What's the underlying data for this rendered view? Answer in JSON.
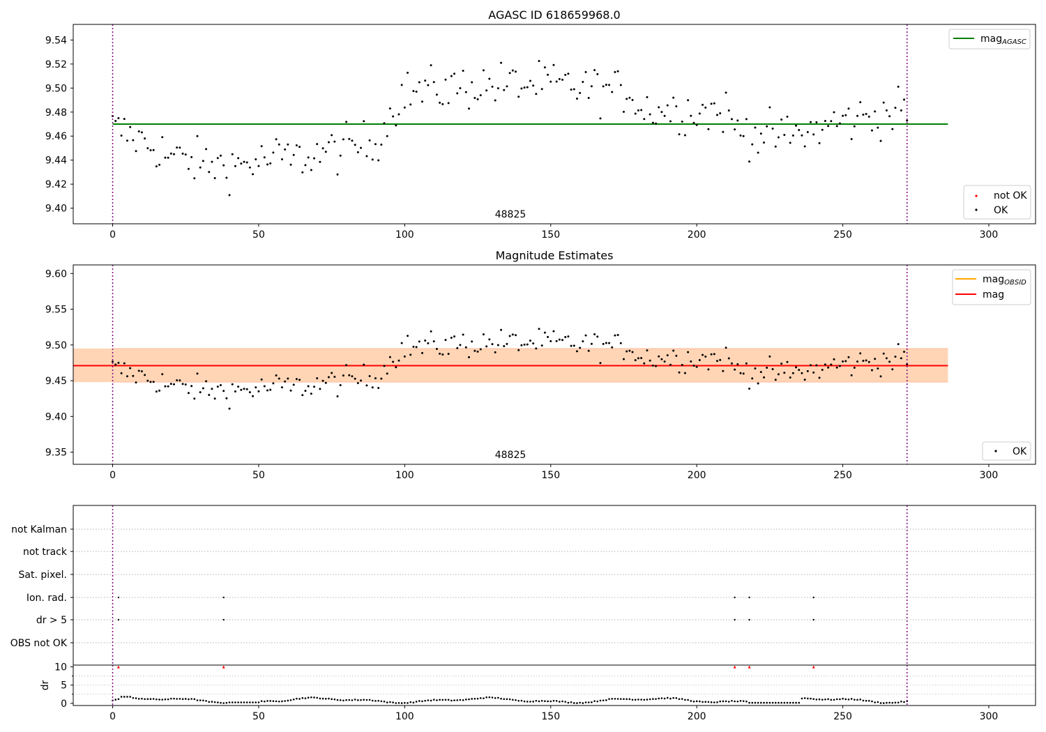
{
  "chart_data": [
    {
      "type": "scatter",
      "title": "AGASC ID 618659968.0",
      "annotation": "48825",
      "xlim": [
        -13.5,
        316
      ],
      "ylim": [
        9.387,
        9.553
      ],
      "xticks": [
        0,
        50,
        100,
        150,
        200,
        250,
        300
      ],
      "yticks": [
        9.4,
        9.42,
        9.44,
        9.46,
        9.48,
        9.5,
        9.52,
        9.54
      ],
      "ytick_labels": [
        "9.40",
        "9.42",
        "9.44",
        "9.46",
        "9.48",
        "9.50",
        "9.52",
        "9.54"
      ],
      "vlines": [
        0,
        272
      ],
      "series": [
        {
          "name": "mag_AGASC",
          "kind": "hline",
          "y": 9.47,
          "x": [
            0,
            286
          ],
          "color": "#008000"
        }
      ],
      "legends": [
        {
          "position": "upper-right",
          "entries": [
            {
              "label": "mag",
              "sub": "AGASC",
              "marker": "line",
              "color": "#008000"
            }
          ]
        },
        {
          "position": "lower-right",
          "entries": [
            {
              "label": "not OK",
              "marker": "dot",
              "color": "#ff0000"
            },
            {
              "label": "OK",
              "marker": "dot",
              "color": "#000000"
            }
          ]
        }
      ],
      "grid": false
    },
    {
      "type": "scatter",
      "title": "Magnitude Estimates",
      "annotation": "48825",
      "xlim": [
        -13.5,
        316
      ],
      "ylim": [
        9.333,
        9.612
      ],
      "xticks": [
        0,
        50,
        100,
        150,
        200,
        250,
        300
      ],
      "yticks": [
        9.35,
        9.4,
        9.45,
        9.5,
        9.55,
        9.6
      ],
      "ytick_labels": [
        "9.35",
        "9.40",
        "9.45",
        "9.50",
        "9.55",
        "9.60"
      ],
      "vlines": [
        0,
        272
      ],
      "bands": [
        {
          "y": [
            9.448,
            9.495
          ],
          "x": [
            -13.5,
            286
          ],
          "color": "#ffc0cb",
          "opacity": 0.45
        },
        {
          "y": [
            9.448,
            9.495
          ],
          "x": [
            -13.5,
            286
          ],
          "color": "#ffa500",
          "opacity": 0.22
        }
      ],
      "series": [
        {
          "name": "mag_OBSID",
          "kind": "hline",
          "y": 9.471,
          "x": [
            -13.5,
            286
          ],
          "color": "#ffa500"
        },
        {
          "name": "mag",
          "kind": "hline",
          "y": 9.471,
          "x": [
            -13.5,
            286
          ],
          "color": "#ff0000"
        }
      ],
      "legends": [
        {
          "position": "upper-right",
          "entries": [
            {
              "label": "mag",
              "sub": "OBSID",
              "marker": "line",
              "color": "#ffa500"
            },
            {
              "label": "mag",
              "marker": "line",
              "color": "#ff0000"
            }
          ]
        },
        {
          "position": "lower-right",
          "entries": [
            {
              "label": "OK",
              "marker": "dot",
              "color": "#000000"
            }
          ]
        }
      ],
      "grid": false
    },
    {
      "type": "scatter",
      "xlim": [
        -13.5,
        316
      ],
      "categories": [
        "not Kalman",
        "not track",
        "Sat. pixel.",
        "Ion. rad.",
        "dr > 5",
        "OBS not OK"
      ],
      "vlines": [
        0,
        272
      ],
      "series": [
        {
          "kind": "flags",
          "row": "Ion. rad.",
          "x": [
            2,
            38,
            213,
            218,
            240
          ]
        },
        {
          "kind": "flags",
          "row": "dr > 5",
          "x": [
            2,
            38,
            213,
            218,
            240
          ]
        }
      ],
      "grid": true
    },
    {
      "type": "scatter",
      "ylabel": "dr",
      "xlim": [
        -13.5,
        316
      ],
      "ylim": [
        -0.6,
        10.5
      ],
      "xticks": [
        0,
        50,
        100,
        150,
        200,
        250,
        300
      ],
      "yticks": [
        0,
        5,
        10
      ],
      "vlines": [
        0,
        272
      ],
      "series": [
        {
          "kind": "flags-high",
          "y": 10,
          "x": [
            2,
            38,
            213,
            218,
            240
          ],
          "color": "#ff0000"
        }
      ],
      "grid": true
    }
  ]
}
